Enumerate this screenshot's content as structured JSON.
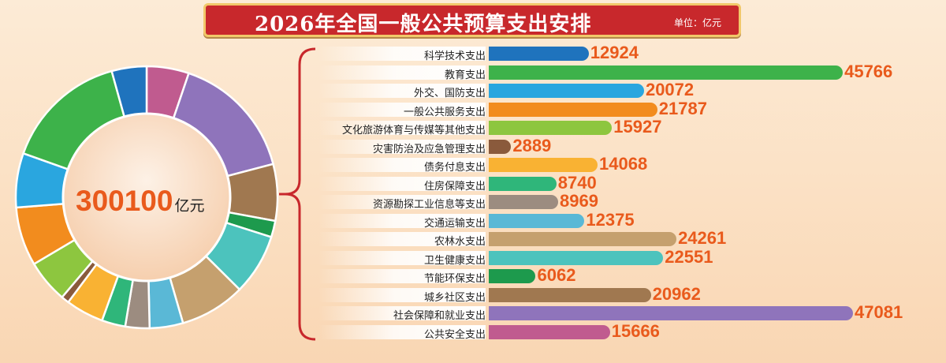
{
  "title": "2026年全国一般公共预算支出安排",
  "unit": "单位：亿元",
  "total": {
    "value": "300100",
    "unit": "亿元"
  },
  "chart_data": {
    "type": "bar",
    "title": "2026年全国一般公共预算支出安排",
    "unit": "亿元",
    "orientation": "horizontal",
    "categories": [
      "科学技术支出",
      "教育支出",
      "外交、国防支出",
      "一般公共服务支出",
      "文化旅游体育与传媒等其他支出",
      "灾害防治及应急管理支出",
      "债务付息支出",
      "住房保障支出",
      "资源勘探工业信息等支出",
      "交通运输支出",
      "农林水支出",
      "卫生健康支出",
      "节能环保支出",
      "城乡社区支出",
      "社会保障和就业支出",
      "公共安全支出"
    ],
    "values": [
      12924,
      45766,
      20072,
      21787,
      15927,
      2889,
      14068,
      8740,
      8969,
      12375,
      24261,
      22551,
      6062,
      20962,
      47081,
      15666
    ],
    "colors": [
      "#1f73bd",
      "#3db24a",
      "#2aa6df",
      "#f28c1e",
      "#8dc63f",
      "#8a5a3c",
      "#f9b233",
      "#2fb67a",
      "#9c8c80",
      "#5ab8d6",
      "#c5a06e",
      "#4cc3bd",
      "#1d9a4d",
      "#a07850",
      "#8f74bb",
      "#c05b8f"
    ],
    "donut": {
      "total": 300100,
      "order": [
        "公共安全支出",
        "社会保障和就业支出",
        "城乡社区支出",
        "节能环保支出",
        "卫生健康支出",
        "农林水支出",
        "交通运输支出",
        "资源勘探工业信息等支出",
        "住房保障支出",
        "债务付息支出",
        "灾害防治及应急管理支出",
        "文化旅游体育与传媒等其他支出",
        "一般公共服务支出",
        "外交、国防支出",
        "教育支出",
        "科学技术支出"
      ]
    }
  }
}
